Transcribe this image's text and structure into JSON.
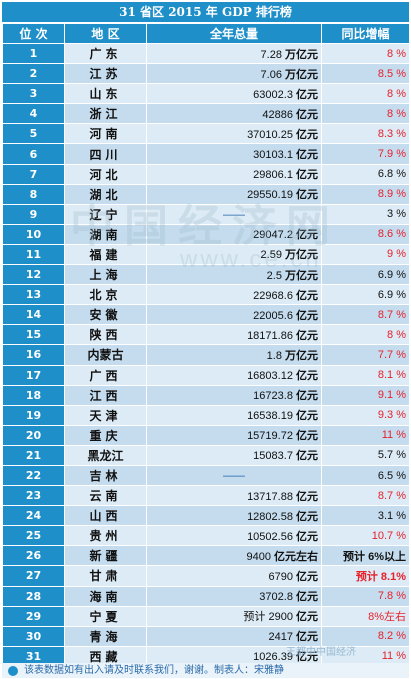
{
  "title": "31 省区 2015 年 GDP 排行榜",
  "headers": {
    "rank": "位 次",
    "region": "地 区",
    "total": "全年总量",
    "growth": "同比增幅"
  },
  "rows": [
    {
      "rank": "1",
      "region": "广东",
      "total": "7.28 ",
      "unit": "万亿元",
      "growth": "8 %",
      "color": "red"
    },
    {
      "rank": "2",
      "region": "江苏",
      "total": "7.06 ",
      "unit": "万亿元",
      "growth": "8.5 %",
      "color": "red"
    },
    {
      "rank": "3",
      "region": "山东",
      "total": "63002.3 ",
      "unit": "亿元",
      "growth": "8 %",
      "color": "red"
    },
    {
      "rank": "4",
      "region": "浙江",
      "total": "42886 ",
      "unit": "亿元",
      "growth": "8 %",
      "color": "red"
    },
    {
      "rank": "5",
      "region": "河南",
      "total": "37010.25 ",
      "unit": "亿元",
      "growth": "8.3 %",
      "color": "red"
    },
    {
      "rank": "6",
      "region": "四川",
      "total": "30103.1 ",
      "unit": "亿元",
      "growth": "7.9 %",
      "color": "red"
    },
    {
      "rank": "7",
      "region": "河北",
      "total": "29806.1 ",
      "unit": "亿元",
      "growth": "6.8 %",
      "color": "dark"
    },
    {
      "rank": "8",
      "region": "湖北",
      "total": "29550.19 ",
      "unit": "亿元",
      "growth": "8.9 %",
      "color": "red"
    },
    {
      "rank": "9",
      "region": "辽宁",
      "total": "——",
      "unit": "",
      "growth": "3 %",
      "color": "dark"
    },
    {
      "rank": "10",
      "region": "湖南",
      "total": "29047.2 ",
      "unit": "亿元",
      "growth": "8.6 %",
      "color": "red"
    },
    {
      "rank": "11",
      "region": "福建",
      "total": "2.59 ",
      "unit": "万亿元",
      "growth": "9 %",
      "color": "red"
    },
    {
      "rank": "12",
      "region": "上海",
      "total": "2.5 ",
      "unit": "万亿元",
      "growth": "6.9 %",
      "color": "dark"
    },
    {
      "rank": "13",
      "region": "北京",
      "total": "22968.6 ",
      "unit": "亿元",
      "growth": "6.9 %",
      "color": "dark"
    },
    {
      "rank": "14",
      "region": "安徽",
      "total": "22005.6 ",
      "unit": "亿元",
      "growth": "8.7 %",
      "color": "red"
    },
    {
      "rank": "15",
      "region": "陕西",
      "total": "18171.86 ",
      "unit": "亿元",
      "growth": "8 %",
      "color": "red"
    },
    {
      "rank": "16",
      "region": "内蒙古",
      "total": "1.8 ",
      "unit": "万亿元",
      "growth": "7.7 %",
      "color": "red"
    },
    {
      "rank": "17",
      "region": "广西",
      "total": "16803.12 ",
      "unit": "亿元",
      "growth": "8.1 %",
      "color": "red"
    },
    {
      "rank": "18",
      "region": "江西",
      "total": "16723.8 ",
      "unit": "亿元",
      "growth": "9.1 %",
      "color": "red"
    },
    {
      "rank": "19",
      "region": "天津",
      "total": "16538.19 ",
      "unit": "亿元",
      "growth": "9.3 %",
      "color": "red"
    },
    {
      "rank": "20",
      "region": "重庆",
      "total": "15719.72 ",
      "unit": "亿元",
      "growth": "11 %",
      "color": "red"
    },
    {
      "rank": "21",
      "region": "黑龙江",
      "total": "15083.7 ",
      "unit": "亿元",
      "growth": "5.7 %",
      "color": "dark"
    },
    {
      "rank": "22",
      "region": "吉林",
      "total": "——",
      "unit": "",
      "growth": "6.5 %",
      "color": "dark"
    },
    {
      "rank": "23",
      "region": "云南",
      "total": "13717.88 ",
      "unit": "亿元",
      "growth": "8.7 %",
      "color": "red"
    },
    {
      "rank": "24",
      "region": "山西",
      "total": "12802.58 ",
      "unit": "亿元",
      "growth": "3.1 %",
      "color": "dark"
    },
    {
      "rank": "25",
      "region": "贵州",
      "total": "10502.56 ",
      "unit": "亿元",
      "growth": "10.7 %",
      "color": "red"
    },
    {
      "rank": "26",
      "region": "新疆",
      "total": "9400 ",
      "unit": "亿元左右",
      "growth": "预计 6%以上",
      "color": "dark"
    },
    {
      "rank": "27",
      "region": "甘肃",
      "total": "6790 ",
      "unit": "亿元",
      "growth": "预计 8.1%",
      "color": "red"
    },
    {
      "rank": "28",
      "region": "海南",
      "total": "3702.8 ",
      "unit": "亿元",
      "growth": "7.8 %",
      "color": "red"
    },
    {
      "rank": "29",
      "region": "宁夏",
      "total": "预计 2900 ",
      "unit": "亿元",
      "growth": "8%左右",
      "color": "red"
    },
    {
      "rank": "30",
      "region": "青海",
      "total": "2417 ",
      "unit": "亿元",
      "growth": "8.2 %",
      "color": "red"
    },
    {
      "rank": "31",
      "region": "西藏",
      "total": "1026.39 ",
      "unit": "亿元",
      "growth": "11 %",
      "color": "red"
    }
  ],
  "note": "该表数据如有出入请及时联系我们，谢谢。制表人：宋雅静",
  "watermark": {
    "text": "中国经济网",
    "url": "www.ce.cn"
  },
  "credit": "王都中中国经济"
}
